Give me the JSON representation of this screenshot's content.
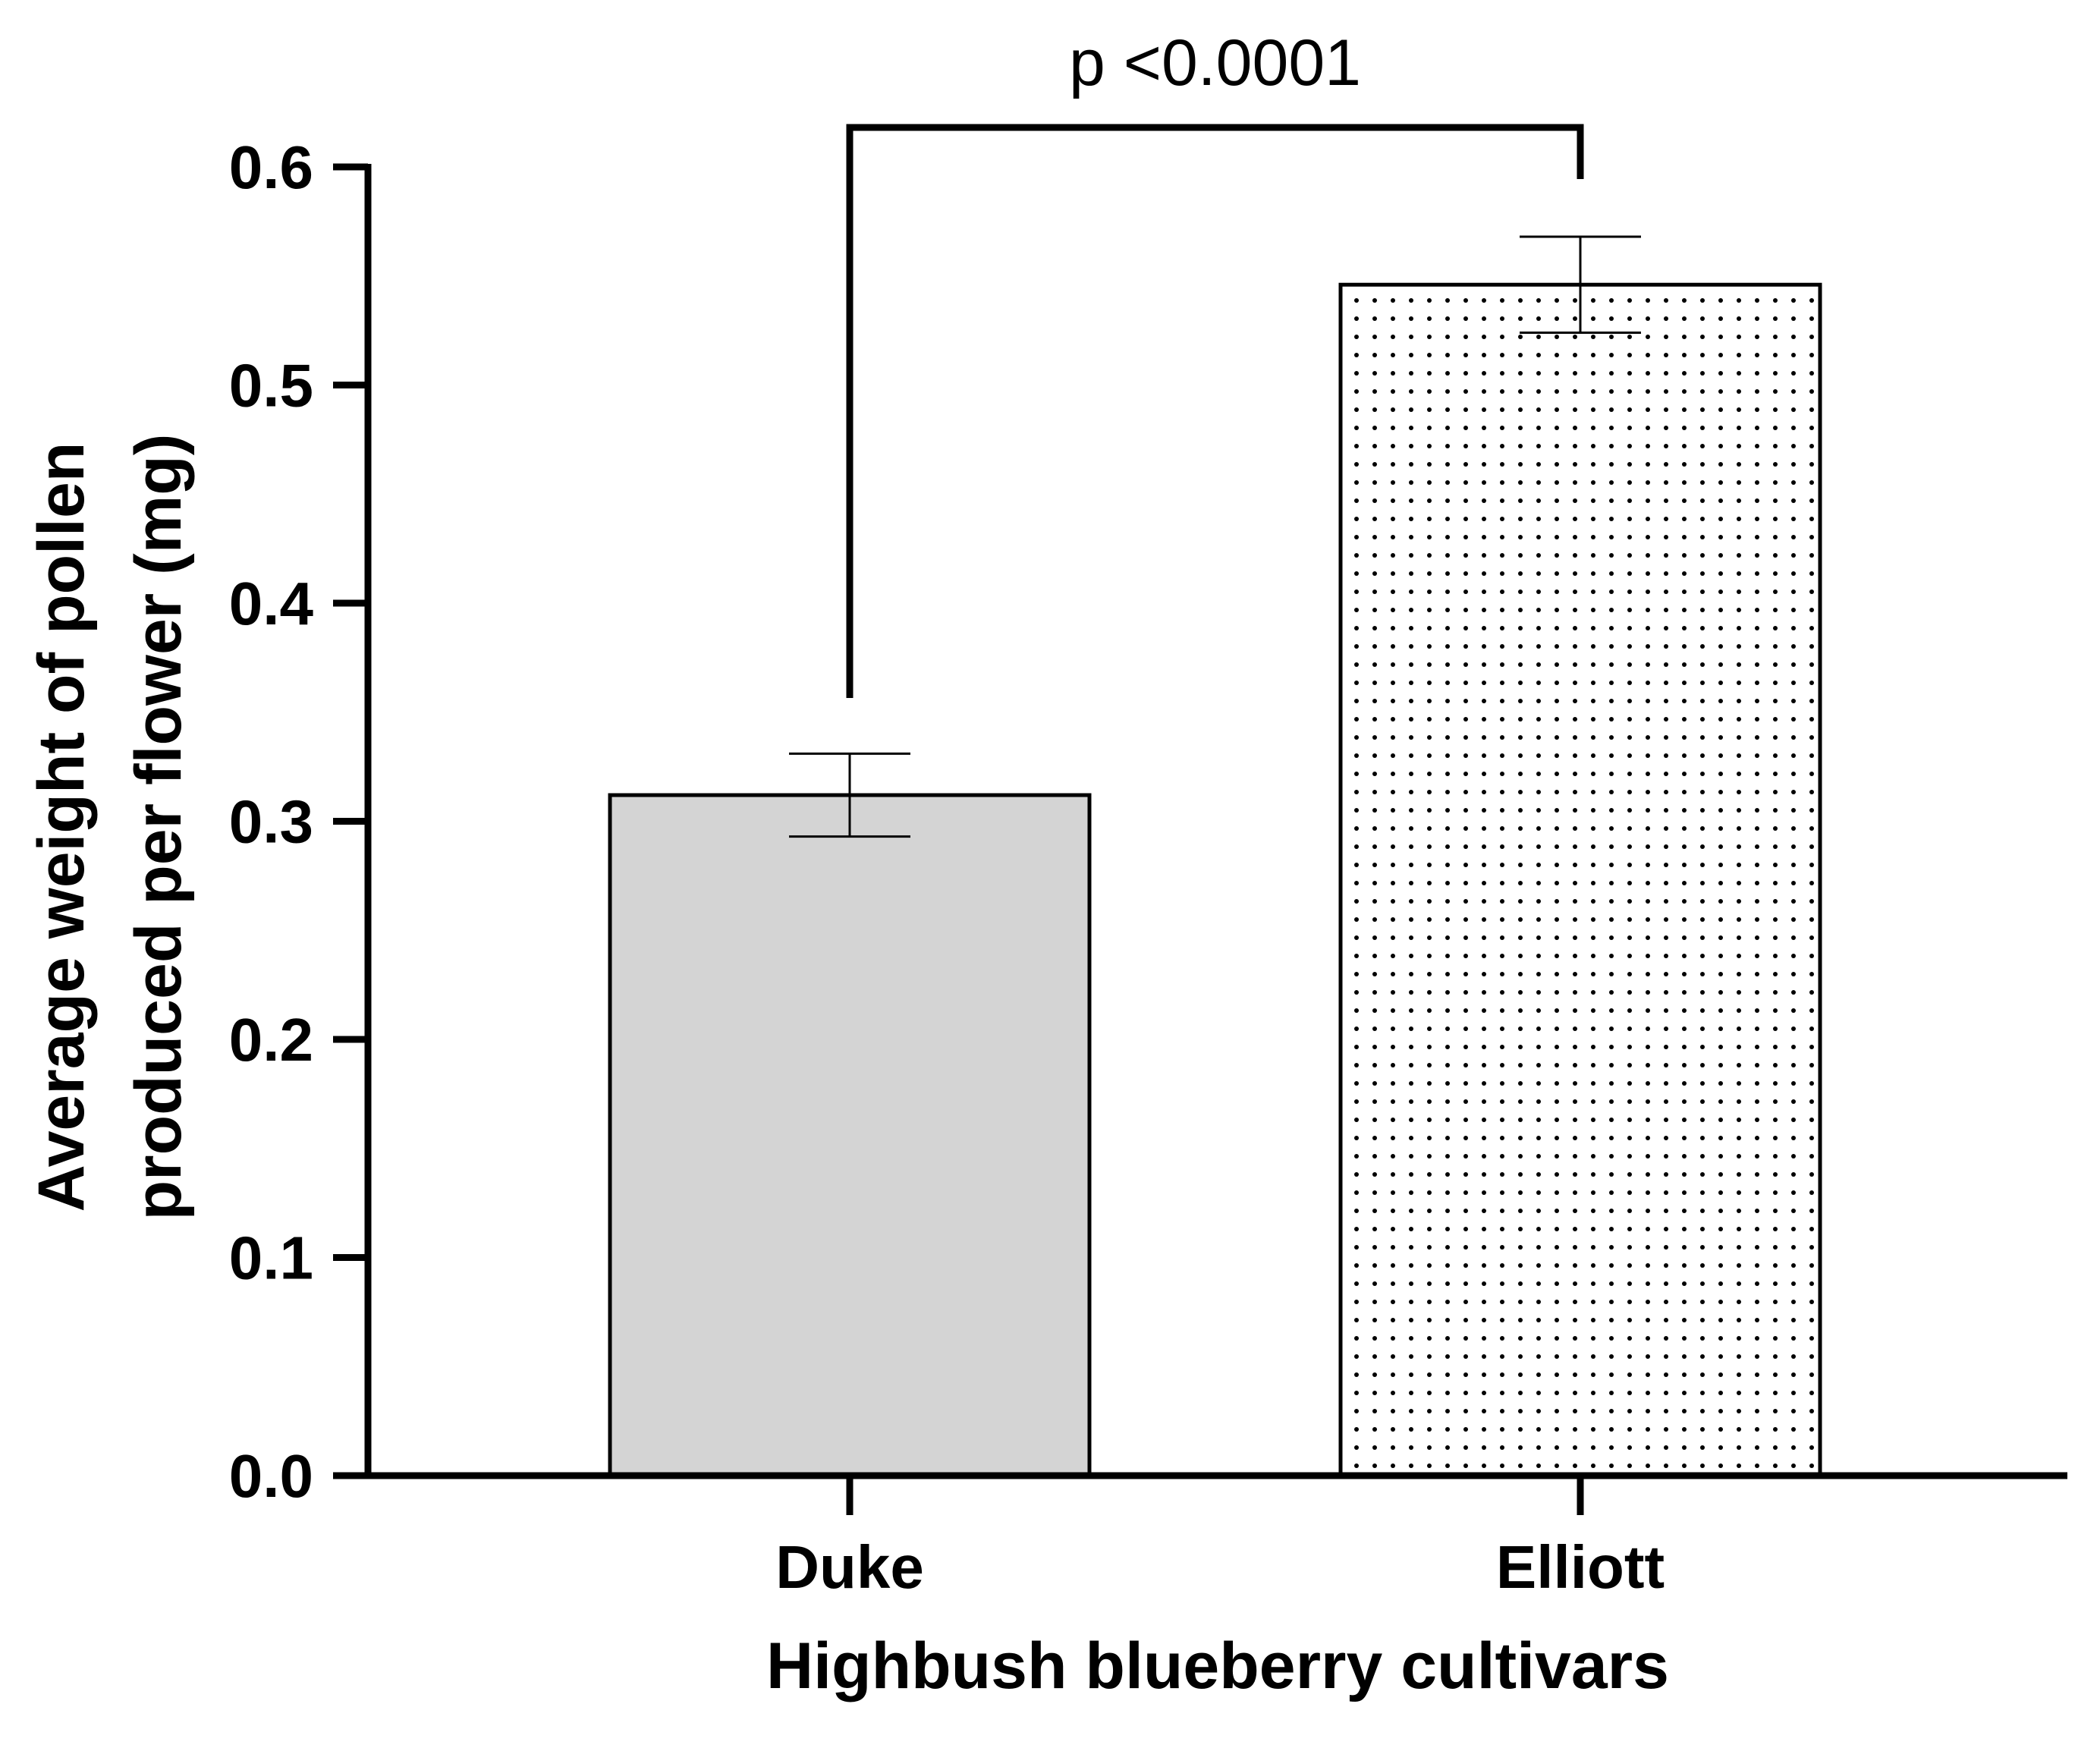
{
  "chart_data": {
    "type": "bar",
    "categories": [
      "Duke",
      "Elliott"
    ],
    "values": [
      0.312,
      0.546
    ],
    "errors": [
      0.019,
      0.022
    ],
    "ylabel": "Average weight of pollen produced per flower (mg)",
    "ylabel_lines": [
      "Average weight of pollen",
      "produced per flower (mg)"
    ],
    "xlabel": "Highbush blueberry cultivars",
    "ylim": [
      0,
      0.6
    ],
    "yticks": [
      0.0,
      0.1,
      0.2,
      0.3,
      0.4,
      0.5,
      0.6
    ],
    "ytick_labels": [
      "0.0",
      "0.1",
      "0.2",
      "0.3",
      "0.4",
      "0.5",
      "0.6"
    ],
    "bar_styles": [
      "solid-gray",
      "dotted"
    ],
    "grid": false,
    "significance": {
      "label": "p <0.0001",
      "between": [
        "Duke",
        "Elliott"
      ]
    },
    "colors": {
      "duke_fill": "#d4d4d4",
      "elliott_fill": "#ffffff",
      "stroke": "#000000"
    }
  }
}
